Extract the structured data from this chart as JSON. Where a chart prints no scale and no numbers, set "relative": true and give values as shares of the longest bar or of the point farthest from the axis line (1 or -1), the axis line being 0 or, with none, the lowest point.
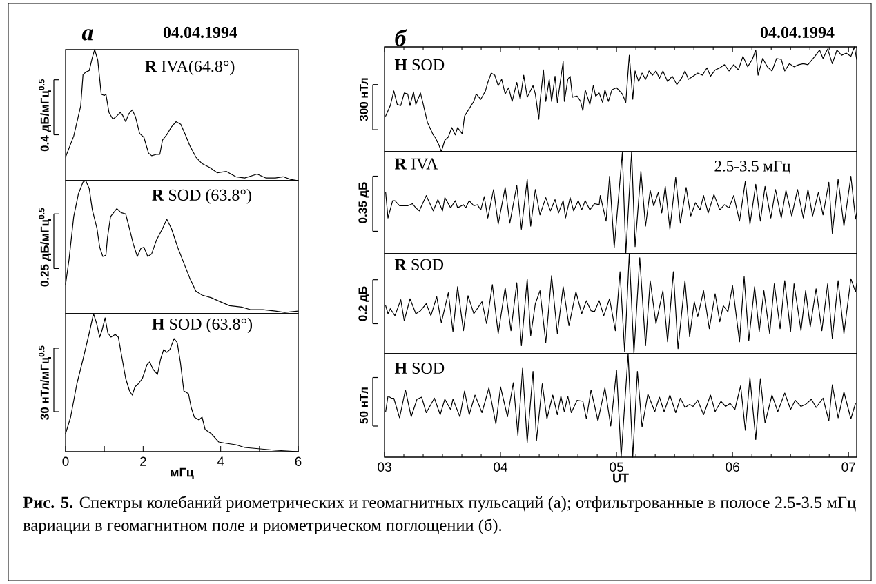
{
  "chart_data": [
    {
      "type": "line",
      "relative": true,
      "title": "**R** IVA(64.8°)",
      "ylabel": "0.4 дБ/мГц$^{0.5}$",
      "annotations": [
        "а",
        "04.04.1994"
      ],
      "xlim": [
        0,
        6
      ],
      "tick_labels": false,
      "x": [
        0,
        0.21,
        0.39,
        0.45,
        0.53,
        0.61,
        0.69,
        0.75,
        0.83,
        0.92,
        1.0,
        1.04,
        1.12,
        1.22,
        1.31,
        1.41,
        1.47,
        1.55,
        1.63,
        1.72,
        1.8,
        1.91,
        2.02,
        2.14,
        2.22,
        2.34,
        2.43,
        2.5,
        2.61,
        2.73,
        2.85,
        2.97,
        3.09,
        3.2,
        3.36,
        3.52,
        3.72,
        3.91,
        4.15,
        4.39,
        4.62,
        4.94,
        5.17,
        5.41,
        5.61,
        5.8,
        6.0
      ],
      "series": [
        {
          "color": "#000000",
          "values": [
            0.18,
            0.34,
            0.57,
            0.81,
            0.83,
            0.84,
            0.94,
            1.0,
            0.92,
            0.66,
            0.65,
            0.66,
            0.52,
            0.47,
            0.49,
            0.52,
            0.5,
            0.45,
            0.51,
            0.54,
            0.49,
            0.36,
            0.33,
            0.21,
            0.19,
            0.2,
            0.2,
            0.31,
            0.35,
            0.41,
            0.45,
            0.43,
            0.35,
            0.27,
            0.18,
            0.13,
            0.1,
            0.06,
            0.07,
            0.03,
            0.02,
            0.05,
            0.02,
            0.02,
            0.03,
            0.01,
            0
          ]
        }
      ]
    },
    {
      "type": "line",
      "relative": true,
      "title": "**R** SOD (63.8°)",
      "ylabel": "0.25 дБ/мГц$^{0.5}$",
      "xlim": [
        0,
        6
      ],
      "tick_labels": false,
      "x": [
        0,
        0.09,
        0.21,
        0.33,
        0.45,
        0.52,
        0.61,
        0.69,
        0.81,
        0.88,
        0.96,
        1.04,
        1.08,
        1.16,
        1.32,
        1.43,
        1.55,
        1.63,
        1.75,
        1.85,
        1.94,
        2.02,
        2.12,
        2.22,
        2.34,
        2.5,
        2.61,
        2.73,
        2.89,
        3.05,
        3.2,
        3.36,
        3.52,
        3.76,
        3.99,
        4.23,
        4.54,
        4.78,
        5.09,
        5.41,
        5.65,
        6.0
      ],
      "series": [
        {
          "color": "#000000",
          "values": [
            0.22,
            0.41,
            0.73,
            0.9,
            0.99,
            1.0,
            0.94,
            0.78,
            0.64,
            0.5,
            0.43,
            0.44,
            0.57,
            0.73,
            0.79,
            0.76,
            0.75,
            0.66,
            0.52,
            0.43,
            0.49,
            0.5,
            0.43,
            0.45,
            0.55,
            0.64,
            0.71,
            0.64,
            0.5,
            0.38,
            0.27,
            0.17,
            0.14,
            0.12,
            0.09,
            0.06,
            0.05,
            0.03,
            0.03,
            0.02,
            0.01,
            0.02
          ]
        }
      ]
    },
    {
      "type": "line",
      "relative": true,
      "title": "**H** SOD (63.8°)",
      "ylabel": "30 нТл/мГц$^{0.5}$",
      "xlabel": "мГц",
      "xlim": [
        0,
        6
      ],
      "tick_labels": "x",
      "xticks": [
        0,
        {
          "value": 1,
          "label": null
        },
        2,
        {
          "value": 3,
          "label": null
        },
        4,
        {
          "value": 5,
          "label": null
        },
        6
      ],
      "x": [
        0,
        0.13,
        0.29,
        0.45,
        0.61,
        0.72,
        0.8,
        0.88,
        0.94,
        1.02,
        1.09,
        1.17,
        1.28,
        1.36,
        1.43,
        1.55,
        1.65,
        1.72,
        1.79,
        1.87,
        1.98,
        2.1,
        2.17,
        2.25,
        2.37,
        2.45,
        2.53,
        2.61,
        2.69,
        2.8,
        2.88,
        2.96,
        3.05,
        3.17,
        3.24,
        3.32,
        3.44,
        3.52,
        3.6,
        3.76,
        3.95,
        4.15,
        4.39,
        4.62,
        5.02,
        5.41,
        6.0
      ],
      "series": [
        {
          "color": "#000000",
          "values": [
            0.13,
            0.25,
            0.49,
            0.67,
            0.86,
            1.0,
            0.93,
            0.83,
            0.88,
            0.97,
            0.86,
            0.83,
            0.85,
            0.83,
            0.72,
            0.53,
            0.44,
            0.41,
            0.47,
            0.49,
            0.53,
            0.63,
            0.65,
            0.6,
            0.56,
            0.67,
            0.74,
            0.72,
            0.74,
            0.82,
            0.79,
            0.65,
            0.44,
            0.42,
            0.32,
            0.25,
            0.23,
            0.25,
            0.16,
            0.13,
            0.07,
            0.06,
            0.05,
            0.03,
            0.02,
            0.01,
            0
          ]
        }
      ]
    },
    {
      "type": "line",
      "relative": true,
      "title": "**H** SOD",
      "ylabel": "300 нТл",
      "annotations": [
        "б",
        "04.04.1994"
      ],
      "xlim": [
        3,
        7.07
      ],
      "tick_labels": false,
      "xticks": [
        {
          "value": 3,
          "label": null
        },
        {
          "value": 4,
          "label": null
        },
        {
          "value": 5,
          "label": null
        },
        {
          "value": 6,
          "label": null
        },
        {
          "value": 7,
          "label": null
        }
      ],
      "x": [
        3.01,
        3.05,
        3.08,
        3.11,
        3.14,
        3.17,
        3.2,
        3.22,
        3.25,
        3.27,
        3.31,
        3.33,
        3.37,
        3.42,
        3.44,
        3.47,
        3.49,
        3.52,
        3.55,
        3.58,
        3.61,
        3.63,
        3.67,
        3.69,
        3.73,
        3.77,
        3.79,
        3.83,
        3.87,
        3.89,
        3.92,
        3.95,
        3.98,
        4.01,
        4.04,
        4.07,
        4.1,
        4.14,
        4.17,
        4.2,
        4.23,
        4.28,
        4.3,
        4.33,
        4.34,
        4.37,
        4.39,
        4.42,
        4.44,
        4.47,
        4.49,
        4.54,
        4.55,
        4.58,
        4.6,
        4.62,
        4.66,
        4.69,
        4.71,
        4.73,
        4.77,
        4.8,
        4.82,
        4.85,
        4.88,
        4.9,
        4.93,
        4.96,
        5.0,
        5.05,
        5.08,
        5.11,
        5.14,
        5.16,
        5.19,
        5.22,
        5.25,
        5.28,
        5.31,
        5.34,
        5.37,
        5.4,
        5.44,
        5.48,
        5.52,
        5.56,
        5.59,
        5.62,
        5.66,
        5.7,
        5.74,
        5.78,
        5.81,
        5.85,
        5.89,
        5.93,
        5.97,
        6.01,
        6.05,
        6.09,
        6.13,
        6.17,
        6.2,
        6.22,
        6.26,
        6.3,
        6.34,
        6.38,
        6.42,
        6.45,
        6.49,
        6.53,
        6.57,
        6.61,
        6.65,
        6.71,
        6.75,
        6.78,
        6.82,
        6.86,
        6.9,
        6.94,
        6.98,
        7.02,
        7.05,
        7.07
      ],
      "series": [
        {
          "color": "#000000",
          "values": [
            0.34,
            0.44,
            0.58,
            0.45,
            0.44,
            0.56,
            0.55,
            0.44,
            0.57,
            0.45,
            0.56,
            0.47,
            0.28,
            0.16,
            0.13,
            0.06,
            0,
            0.11,
            0.14,
            0.23,
            0.16,
            0.23,
            0.17,
            0.34,
            0.41,
            0.48,
            0.55,
            0.5,
            0.58,
            0.66,
            0.75,
            0.73,
            0.63,
            0.69,
            0.55,
            0.61,
            0.48,
            0.66,
            0.5,
            0.73,
            0.52,
            0.63,
            0.55,
            0.31,
            0.47,
            0.78,
            0.48,
            0.69,
            0.48,
            0.72,
            0.47,
            0.86,
            0.48,
            0.69,
            0.72,
            0.52,
            0.53,
            0.48,
            0.39,
            0.59,
            0.45,
            0.63,
            0.53,
            0.56,
            0.47,
            0.59,
            0.48,
            0.59,
            0.61,
            0.55,
            0.47,
            0.92,
            0.5,
            0.77,
            0.67,
            0.75,
            0.69,
            0.77,
            0.73,
            0.77,
            0.7,
            0.77,
            0.67,
            0.72,
            0.64,
            0.7,
            0.77,
            0.69,
            0.72,
            0.75,
            0.73,
            0.8,
            0.72,
            0.78,
            0.8,
            0.83,
            0.77,
            0.83,
            0.78,
            0.91,
            0.81,
            0.88,
            0.97,
            0.73,
            0.89,
            0.81,
            0.77,
            0.89,
            0.88,
            0.77,
            0.84,
            0.81,
            0.83,
            0.84,
            0.83,
            0.91,
            0.97,
            0.89,
            0.98,
            0.84,
            0.97,
            0.92,
            0.94,
            0.91,
            1.0,
            0.88
          ]
        }
      ]
    },
    {
      "type": "line",
      "relative": true,
      "title": "**R** IVA",
      "ylabel": "0.35 дБ",
      "annotations": [
        "2.5-3.5 мГц"
      ],
      "xlim": [
        3,
        7.07
      ],
      "tick_labels": false,
      "x": [
        3.01,
        3.03,
        3.07,
        3.09,
        3.13,
        3.17,
        3.2,
        3.24,
        3.27,
        3.3,
        3.36,
        3.42,
        3.46,
        3.5,
        3.52,
        3.57,
        3.61,
        3.63,
        3.68,
        3.7,
        3.73,
        3.77,
        3.8,
        3.83,
        3.86,
        3.89,
        3.94,
        3.98,
        4.04,
        4.08,
        4.14,
        4.18,
        4.23,
        4.26,
        4.3,
        4.34,
        4.39,
        4.43,
        4.47,
        4.5,
        4.54,
        4.56,
        4.6,
        4.63,
        4.67,
        4.7,
        4.73,
        4.77,
        4.81,
        4.85,
        4.86,
        4.91,
        4.94,
        4.98,
        5.05,
        5.08,
        5.13,
        5.16,
        5.21,
        5.25,
        5.29,
        5.32,
        5.36,
        5.39,
        5.42,
        5.46,
        5.51,
        5.55,
        5.6,
        5.64,
        5.68,
        5.72,
        5.75,
        5.79,
        5.84,
        5.89,
        5.93,
        5.97,
        6.01,
        6.06,
        6.11,
        6.15,
        6.2,
        6.24,
        6.28,
        6.33,
        6.37,
        6.42,
        6.46,
        6.51,
        6.56,
        6.61,
        6.65,
        6.69,
        6.74,
        6.78,
        6.83,
        6.86,
        6.91,
        6.96,
        7.02,
        7.06,
        7.07
      ],
      "series": [
        {
          "color": "#000000",
          "values": [
            0.6,
            0.35,
            0.52,
            0.52,
            0.47,
            0.47,
            0.47,
            0.49,
            0.45,
            0.42,
            0.57,
            0.42,
            0.53,
            0.42,
            0.55,
            0.45,
            0.52,
            0.45,
            0.48,
            0.45,
            0.52,
            0.47,
            0.48,
            0.43,
            0.56,
            0.35,
            0.63,
            0.29,
            0.65,
            0.3,
            0.67,
            0.24,
            0.73,
            0.27,
            0.63,
            0.38,
            0.55,
            0.42,
            0.53,
            0.4,
            0.52,
            0.35,
            0.55,
            0.42,
            0.52,
            0.43,
            0.52,
            0.43,
            0.49,
            0.48,
            0.57,
            0.32,
            0.76,
            0.06,
            0.99,
            0,
            1.0,
            0.07,
            0.81,
            0.27,
            0.62,
            0.47,
            0.6,
            0.4,
            0.66,
            0.24,
            0.75,
            0.3,
            0.65,
            0.37,
            0.5,
            0.43,
            0.57,
            0.4,
            0.58,
            0.43,
            0.48,
            0.45,
            0.57,
            0.32,
            0.71,
            0.29,
            0.68,
            0.32,
            0.66,
            0.35,
            0.63,
            0.35,
            0.62,
            0.37,
            0.63,
            0.35,
            0.63,
            0.37,
            0.6,
            0.38,
            0.7,
            0.2,
            0.73,
            0.27,
            0.76,
            0.34,
            0.4
          ]
        }
      ]
    },
    {
      "type": "line",
      "relative": true,
      "title": "**R** SOD",
      "ylabel": "0.2 дБ",
      "xlim": [
        3,
        7.07
      ],
      "tick_labels": false,
      "x": [
        3.01,
        3.03,
        3.05,
        3.09,
        3.14,
        3.17,
        3.22,
        3.27,
        3.31,
        3.36,
        3.4,
        3.45,
        3.49,
        3.55,
        3.59,
        3.63,
        3.68,
        3.72,
        3.77,
        3.84,
        3.88,
        3.93,
        3.98,
        4.04,
        4.09,
        4.14,
        4.18,
        4.23,
        4.26,
        4.3,
        4.34,
        4.39,
        4.44,
        4.49,
        4.54,
        4.59,
        4.65,
        4.7,
        4.74,
        4.78,
        4.81,
        4.85,
        4.89,
        4.94,
        4.99,
        5.03,
        5.07,
        5.11,
        5.15,
        5.2,
        5.25,
        5.29,
        5.34,
        5.4,
        5.44,
        5.49,
        5.53,
        5.59,
        5.63,
        5.67,
        5.7,
        5.75,
        5.8,
        5.85,
        5.89,
        5.92,
        5.96,
        6.0,
        6.06,
        6.1,
        6.14,
        6.19,
        6.23,
        6.27,
        6.32,
        6.36,
        6.41,
        6.45,
        6.5,
        6.53,
        6.59,
        6.63,
        6.67,
        6.72,
        6.77,
        6.82,
        6.86,
        6.91,
        6.96,
        7.02,
        7.06,
        7.07
      ],
      "series": [
        {
          "color": "#000000",
          "values": [
            0.48,
            0.4,
            0.45,
            0.38,
            0.54,
            0.33,
            0.55,
            0.4,
            0.43,
            0.5,
            0.38,
            0.57,
            0.31,
            0.61,
            0.22,
            0.67,
            0.23,
            0.58,
            0.4,
            0.52,
            0.3,
            0.69,
            0.2,
            0.66,
            0.23,
            0.71,
            0.08,
            0.75,
            0.18,
            0.5,
            0.63,
            0.11,
            0.78,
            0.2,
            0.67,
            0.28,
            0.62,
            0.4,
            0.53,
            0.43,
            0.42,
            0.53,
            0.38,
            0.55,
            0.23,
            0.82,
            0.02,
            1.0,
            0,
            0.96,
            0.08,
            0.73,
            0.3,
            0.63,
            0.12,
            0.82,
            0.05,
            0.73,
            0.17,
            0.52,
            0.37,
            0.63,
            0.25,
            0.6,
            0.32,
            0.48,
            0.42,
            0.68,
            0.12,
            0.77,
            0.13,
            0.67,
            0.22,
            0.63,
            0.2,
            0.7,
            0.25,
            0.73,
            0.22,
            0.7,
            0.23,
            0.63,
            0.27,
            0.65,
            0.23,
            0.7,
            0.15,
            0.73,
            0.2,
            0.75,
            0.62,
            0.7
          ]
        }
      ]
    },
    {
      "type": "line",
      "relative": true,
      "title": "**H** SOD",
      "ylabel": "50 нТл",
      "xlabel": "UT",
      "annotations": [
        "**Рис. 5.** Спектры колебаний риометрических и геомагнитных пульсаций (а); отфильтрованные в полосе 2.5-3.5 мГц вариации в геомагнитном поле и риометрическом поглощении (б)."
      ],
      "xlim": [
        3,
        7.07
      ],
      "tick_labels": "x",
      "xticks": [
        {
          "value": 3,
          "label": "03"
        },
        {
          "value": 4,
          "label": "04"
        },
        {
          "value": 5,
          "label": "05"
        },
        {
          "value": 6,
          "label": "06"
        },
        {
          "value": 7,
          "label": "07"
        }
      ],
      "x": [
        3.01,
        3.03,
        3.06,
        3.08,
        3.13,
        3.18,
        3.23,
        3.28,
        3.32,
        3.36,
        3.43,
        3.48,
        3.52,
        3.57,
        3.59,
        3.65,
        3.69,
        3.73,
        3.78,
        3.84,
        3.9,
        3.96,
        4.0,
        4.06,
        4.11,
        4.15,
        4.19,
        4.23,
        4.28,
        4.31,
        4.36,
        4.4,
        4.45,
        4.49,
        4.52,
        4.55,
        4.58,
        4.61,
        4.66,
        4.71,
        4.74,
        4.78,
        4.84,
        4.9,
        4.95,
        5.0,
        5.04,
        5.1,
        5.14,
        5.18,
        5.22,
        5.27,
        5.33,
        5.37,
        5.41,
        5.46,
        5.51,
        5.55,
        5.59,
        5.63,
        5.66,
        5.7,
        5.75,
        5.81,
        5.85,
        5.9,
        5.94,
        5.98,
        6.02,
        6.07,
        6.11,
        6.15,
        6.2,
        6.24,
        6.28,
        6.34,
        6.39,
        6.45,
        6.5,
        6.54,
        6.59,
        6.63,
        6.68,
        6.72,
        6.78,
        6.83,
        6.86,
        6.91,
        6.96,
        7.02,
        7.06
      ],
      "series": [
        {
          "color": "#000000",
          "values": [
            0.44,
            0.59,
            0.57,
            0.57,
            0.38,
            0.65,
            0.39,
            0.56,
            0.58,
            0.43,
            0.57,
            0.41,
            0.56,
            0.46,
            0.56,
            0.39,
            0.64,
            0.41,
            0.6,
            0.43,
            0.67,
            0.32,
            0.68,
            0.39,
            0.72,
            0.21,
            0.86,
            0.14,
            0.83,
            0.16,
            0.71,
            0.37,
            0.6,
            0.41,
            0.59,
            0.44,
            0.59,
            0.43,
            0.55,
            0.54,
            0.37,
            0.65,
            0.35,
            0.67,
            0.3,
            0.84,
            0,
            1.0,
            0,
            0.83,
            0.29,
            0.61,
            0.44,
            0.58,
            0.44,
            0.6,
            0.43,
            0.57,
            0.48,
            0.51,
            0.49,
            0.55,
            0.41,
            0.6,
            0.44,
            0.54,
            0.49,
            0.52,
            0.46,
            0.69,
            0.26,
            0.77,
            0.17,
            0.76,
            0.33,
            0.6,
            0.44,
            0.62,
            0.46,
            0.55,
            0.49,
            0.51,
            0.56,
            0.48,
            0.57,
            0.35,
            0.7,
            0.38,
            0.63,
            0.37,
            0.52
          ]
        }
      ]
    }
  ]
}
